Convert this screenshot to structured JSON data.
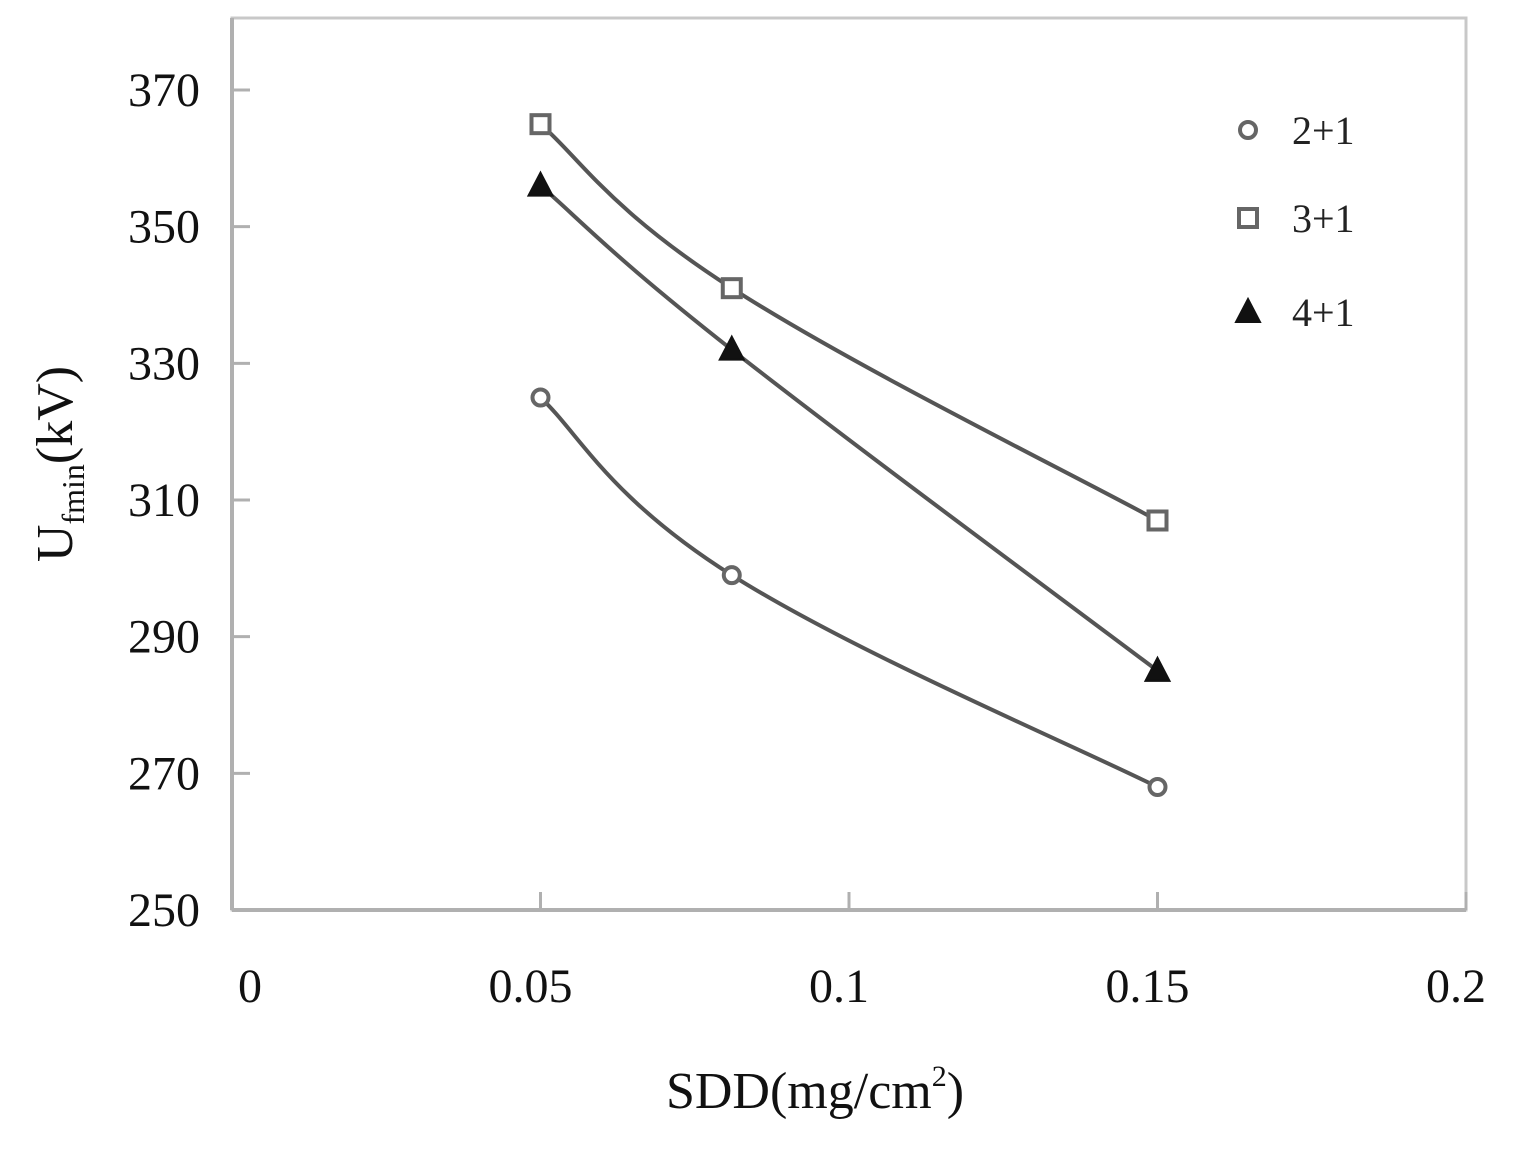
{
  "chart_data": {
    "type": "line",
    "title": "",
    "xlabel": "SDD(mg/cm",
    "xlabel_sup": "2",
    "xlabel_tail": ")",
    "ylabel": "U",
    "ylabel_sub": "fmin",
    "ylabel_tail": "(kV)",
    "xlim": [
      0,
      0.2
    ],
    "ylim": [
      250,
      370
    ],
    "xticks": [
      0,
      0.05,
      0.1,
      0.15,
      0.2
    ],
    "xtick_labels": [
      "0",
      "0.05",
      "0.1",
      "0.15",
      "0.2"
    ],
    "yticks": [
      250,
      270,
      290,
      310,
      330,
      350,
      370
    ],
    "ytick_labels": [
      "250",
      "270",
      "290",
      "310",
      "330",
      "350",
      "370"
    ],
    "grid": false,
    "legend_position": "top-right",
    "series": [
      {
        "name": "2+1",
        "marker": "diamond",
        "x": [
          0.05,
          0.081,
          0.15
        ],
        "y": [
          325,
          299,
          268
        ]
      },
      {
        "name": "3+1",
        "marker": "square",
        "x": [
          0.05,
          0.081,
          0.15
        ],
        "y": [
          365,
          341,
          307
        ]
      },
      {
        "name": "4+1",
        "marker": "triangle",
        "x": [
          0.05,
          0.081,
          0.15
        ],
        "y": [
          356,
          332,
          285
        ]
      }
    ]
  },
  "colors": {
    "line": "#555555",
    "axis": "#c8c8c8",
    "marker_open": "#666666",
    "marker_filled": "#111111"
  }
}
